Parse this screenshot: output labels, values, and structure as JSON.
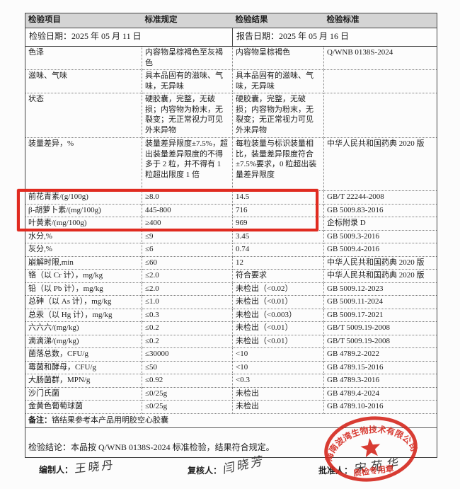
{
  "colors": {
    "accent_red": "#d5281e",
    "highlight_border": "#e02b20",
    "header_bg": "#d4d4d4"
  },
  "dates": {
    "inspection_label": "检验日期：",
    "inspection_value": "2025 年 05 月 11 日",
    "report_label": "报告日期：",
    "report_value": "2025 年 05 月 16 日"
  },
  "table": {
    "headers": [
      "检验项目",
      "标准规定",
      "检验结果",
      "检验标准"
    ],
    "rows": [
      {
        "item": "色泽",
        "spec": "内容物呈棕褐色至灰褐色",
        "result": "内容物呈棕褐色",
        "standard": "Q/WNB 0138S-2024",
        "highlighted": false
      },
      {
        "item": "滋味、气味",
        "spec": "具本品固有的滋味、气味，无异味",
        "result": "具本品固有的滋味、气味，无异味",
        "standard": "",
        "highlighted": false
      },
      {
        "item": "状态",
        "spec": "硬胶囊，完整，无破损；内容物为粉末，无裂变；无正常视力可见外来异物",
        "result": "硬胶囊，完整，无破损；内容物为粉末，无裂变；无正常视力可见外来异物",
        "standard": "",
        "highlighted": false
      },
      {
        "item": "装量差异，%",
        "spec": "装量差异限度±7.5%，超出装量差异限度的不得多于 2 粒，并不得有 1 粒超出限度 1 倍",
        "result": "每粒装量与标识装量相比，装量差异限度符合±7.5%要求，0 粒超出装量差异限度",
        "standard": "中华人民共和国药典 2020 版",
        "highlighted": false
      },
      {
        "item": "前花青素/(g/100g)",
        "spec": "≥8.0",
        "result": "14.5",
        "standard": "GB/T 22244-2008",
        "highlighted": true
      },
      {
        "item": "β-胡萝卜素/(mg/100g)",
        "spec": "445-800",
        "result": "716",
        "standard": "GB 5009.83-2016",
        "highlighted": true
      },
      {
        "item": "叶黄素/(mg/100g)",
        "spec": "≥400",
        "result": "969",
        "standard": "企标附录 D",
        "highlighted": true
      },
      {
        "item": "水分,%",
        "spec": "≤9",
        "result": "3.45",
        "standard": "GB 5009.3-2016",
        "highlighted": false
      },
      {
        "item": "灰分,%",
        "spec": "≤6",
        "result": "0.74",
        "standard": "GB 5009.4-2016",
        "highlighted": false
      },
      {
        "item": "崩解时限,min",
        "spec": "≤60",
        "result": "12",
        "standard": "中华人民共和国药典 2020 版",
        "highlighted": false
      },
      {
        "item": "铬（以 Cr 计），mg/kg",
        "spec": "≤2.0",
        "result": "符合要求",
        "standard": "中华人民共和国药典 2020 版",
        "highlighted": false
      },
      {
        "item": "铅（以 Pb 计），mg/kg",
        "spec": "≤2.0",
        "result": "未检出（<0.02）",
        "standard": "GB 5009.12-2023",
        "highlighted": false
      },
      {
        "item": "总砷（以 As 计），mg/kg",
        "spec": "≤1.0",
        "result": "未检出（<0.01）",
        "standard": "GB 5009.11-2024",
        "highlighted": false
      },
      {
        "item": "总汞（以 Hg 计），mg/kg",
        "spec": "≤0.3",
        "result": "未检出（<0.003）",
        "standard": "GB 5009.17-2021",
        "highlighted": false
      },
      {
        "item": "六六六/(mg/kg)",
        "spec": "≤0.2",
        "result": "未检出（<0.01）",
        "standard": "GB/T 5009.19-2008",
        "highlighted": false
      },
      {
        "item": "滴滴涕/(mg/kg)",
        "spec": "≤0.2",
        "result": "未检出（<0.01）",
        "standard": "GB/T 5009.19-2008",
        "highlighted": false
      },
      {
        "item": "菌落总数，CFU/g",
        "spec": "≤30000",
        "result": "<10",
        "standard": "GB 4789.2-2022",
        "highlighted": false
      },
      {
        "item": "霉菌和酵母，CFU/g",
        "spec": "≤50",
        "result": "<10",
        "standard": "GB 4789.15-2016",
        "highlighted": false
      },
      {
        "item": "大肠菌群，MPN/g",
        "spec": "≤0.92",
        "result": "<0.3",
        "standard": "GB 4789.3-2016",
        "highlighted": false
      },
      {
        "item": "沙门氏菌",
        "spec": "≤0/25g",
        "result": "未检出",
        "standard": "GB 4789.4-2024",
        "highlighted": false
      },
      {
        "item": "金黄色葡萄球菌",
        "spec": "≤0/25g",
        "result": "未检出",
        "standard": "GB 4789.10-2016",
        "highlighted": false
      }
    ]
  },
  "note": {
    "label": "备注：",
    "text": "铬结果参考本产品用明胶空心胶囊"
  },
  "conclusion": {
    "label": "检验结论：",
    "text": "本品按 Q/WNB 0138S-2024 标准检验，结果符合规定。"
  },
  "signatures": {
    "preparer_label": "编制人：",
    "preparer_name": "王晓丹",
    "reviewer_label": "复核人：",
    "reviewer_name": "闫晓芳",
    "approver_label": "批准人：",
    "approver_name": "宋苑华"
  },
  "stamp": {
    "company": "海南波湾生物技术有限公司",
    "label": "质检专用章"
  }
}
